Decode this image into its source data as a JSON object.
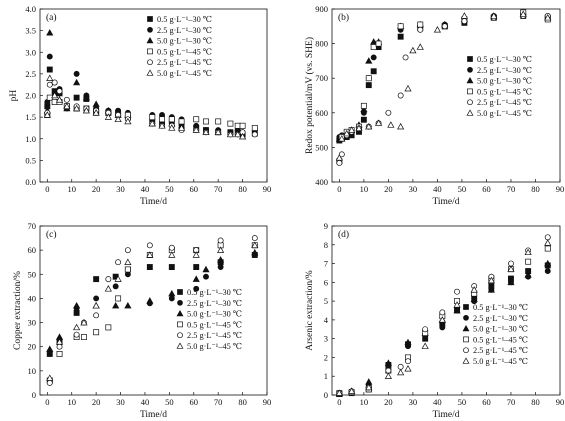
{
  "figure": {
    "series_styles": [
      {
        "marker": "square",
        "filled": true
      },
      {
        "marker": "circle",
        "filled": true
      },
      {
        "marker": "triangle",
        "filled": true
      },
      {
        "marker": "square",
        "filled": false
      },
      {
        "marker": "circle",
        "filled": false
      },
      {
        "marker": "triangle",
        "filled": false
      }
    ],
    "marker_color": "#111111"
  },
  "chart_data": [
    {
      "type": "scatter",
      "panel_label": "(a)",
      "xlabel": "Time/d",
      "ylabel": "pH",
      "xlim": [
        -3,
        90
      ],
      "ylim": [
        0,
        4.0
      ],
      "xticks": [
        0,
        10,
        20,
        30,
        40,
        50,
        60,
        70,
        80,
        90
      ],
      "yticks": [
        0.0,
        0.5,
        1.0,
        1.5,
        2.0,
        2.5,
        3.0,
        3.5,
        4.0
      ],
      "ytick_decimals": 1,
      "legend": {
        "position": "top-right"
      },
      "series": [
        {
          "name": "0.5 g·L⁻¹–30 ℃",
          "x": [
            0,
            1,
            3,
            5,
            8,
            12,
            16,
            20,
            25,
            29,
            33,
            43,
            47,
            51,
            55,
            61,
            65,
            70,
            75,
            78,
            80,
            85
          ],
          "y": [
            1.75,
            2.6,
            2.1,
            2.05,
            1.75,
            1.95,
            1.92,
            1.65,
            1.6,
            1.6,
            1.5,
            1.4,
            1.35,
            1.4,
            1.35,
            1.25,
            1.2,
            1.15,
            1.15,
            1.15,
            1.1,
            1.12
          ]
        },
        {
          "name": "2.5 g·L⁻¹–30 ℃",
          "x": [
            0,
            1,
            3,
            5,
            8,
            12,
            16,
            20,
            25,
            29,
            33,
            43,
            47,
            51,
            55,
            61,
            65,
            70,
            75,
            78,
            80,
            85
          ],
          "y": [
            1.85,
            2.9,
            2.3,
            2.15,
            1.7,
            2.5,
            2.0,
            1.7,
            1.65,
            1.65,
            1.6,
            1.55,
            1.55,
            1.5,
            1.45,
            1.3,
            1.2,
            1.2,
            1.15,
            1.2,
            1.15,
            1.2
          ]
        },
        {
          "name": "5.0 g·L⁻¹–30 ℃",
          "x": [
            0,
            1,
            3,
            5,
            8,
            12,
            16,
            20,
            25,
            29,
            33,
            43,
            47,
            51,
            55
          ],
          "y": [
            1.65,
            3.45,
            2.05,
            1.9,
            1.7,
            2.3,
            1.95,
            1.8,
            1.65,
            1.55,
            1.55,
            1.35,
            1.3,
            1.35,
            1.3
          ]
        },
        {
          "name": "0.5 g·L⁻¹–45 ℃",
          "x": [
            0,
            1,
            3,
            5,
            8,
            12,
            16,
            20,
            25,
            29,
            33,
            43,
            47,
            51,
            55,
            61,
            65,
            70,
            75,
            78,
            80,
            85
          ],
          "y": [
            1.55,
            1.95,
            1.85,
            1.85,
            1.75,
            1.7,
            1.7,
            1.6,
            1.6,
            1.55,
            1.55,
            1.5,
            1.45,
            1.45,
            1.4,
            1.45,
            1.4,
            1.4,
            1.35,
            1.3,
            1.3,
            1.25
          ]
        },
        {
          "name": "2.5 g·L⁻¹–45 ℃",
          "x": [
            0,
            1,
            3,
            5,
            8,
            12,
            16,
            20,
            25,
            29,
            33,
            43,
            47,
            51,
            55,
            61,
            65,
            70,
            75,
            78,
            80,
            85
          ],
          "y": [
            1.6,
            2.25,
            2.3,
            2.1,
            1.9,
            1.75,
            1.7,
            1.65,
            1.6,
            1.55,
            1.45,
            1.35,
            1.3,
            1.3,
            1.2,
            1.2,
            1.15,
            1.15,
            1.1,
            1.1,
            1.15,
            1.1
          ]
        },
        {
          "name": "5.0 g·L⁻¹–45 ℃",
          "x": [
            0,
            1,
            3,
            5,
            8,
            12,
            16,
            20,
            25,
            29,
            33,
            43,
            47,
            51,
            55,
            61,
            65,
            70,
            75,
            78,
            80
          ],
          "y": [
            1.55,
            2.4,
            2.0,
            1.9,
            1.75,
            1.7,
            1.65,
            1.6,
            1.5,
            1.45,
            1.4,
            1.35,
            1.3,
            1.25,
            1.25,
            1.2,
            1.15,
            1.15,
            1.1,
            1.1,
            1.05
          ]
        }
      ]
    },
    {
      "type": "scatter",
      "panel_label": "(b)",
      "xlabel": "Time/d",
      "ylabel": "Redox potential/mV (vs. SHE)",
      "xlim": [
        -3,
        90
      ],
      "ylim": [
        400,
        900
      ],
      "xticks": [
        0,
        10,
        20,
        30,
        40,
        50,
        60,
        70,
        80,
        90
      ],
      "yticks": [
        400,
        500,
        600,
        700,
        800,
        900
      ],
      "ytick_decimals": 0,
      "legend": {
        "position": "right"
      },
      "series": [
        {
          "name": "0.5 g·L⁻¹–30 ℃",
          "x": [
            0,
            1,
            3,
            5,
            8,
            10,
            12,
            14,
            16,
            25,
            33,
            43,
            51,
            63,
            75,
            85
          ],
          "y": [
            520,
            525,
            530,
            535,
            545,
            580,
            680,
            720,
            790,
            820,
            845,
            850,
            860,
            875,
            880,
            875
          ]
        },
        {
          "name": "2.5 g·L⁻¹–30 ℃",
          "x": [
            0,
            1,
            3,
            5,
            8,
            10,
            12,
            14,
            16,
            25,
            33,
            43,
            51,
            63,
            75,
            85
          ],
          "y": [
            530,
            535,
            540,
            545,
            560,
            600,
            700,
            760,
            800,
            840,
            850,
            855,
            865,
            880,
            885,
            880
          ]
        },
        {
          "name": "5.0 g·L⁻¹–30 ℃",
          "x": [
            0,
            1,
            3,
            5,
            8,
            10,
            12,
            14,
            16,
            25,
            33,
            43,
            51
          ],
          "y": [
            525,
            530,
            540,
            550,
            565,
            610,
            750,
            805,
            805,
            850,
            855,
            855,
            870
          ]
        },
        {
          "name": "0.5 g·L⁻¹–45 ℃",
          "x": [
            0,
            1,
            3,
            5,
            8,
            10,
            12,
            14,
            16,
            25,
            33,
            43,
            51,
            63,
            75,
            85
          ],
          "y": [
            460,
            530,
            545,
            550,
            560,
            620,
            700,
            790,
            800,
            850,
            855,
            850,
            870,
            875,
            890,
            870
          ]
        },
        {
          "name": "2.5 g·L⁻¹–45 ℃",
          "x": [
            0,
            1,
            3,
            5,
            8,
            12,
            16,
            20,
            25,
            27,
            33,
            43,
            51,
            63,
            75,
            85
          ],
          "y": [
            455,
            480,
            535,
            545,
            555,
            560,
            570,
            600,
            650,
            760,
            840,
            850,
            865,
            875,
            880,
            880
          ]
        },
        {
          "name": "5.0 g·L⁻¹–45 ℃",
          "x": [
            0,
            1,
            3,
            5,
            8,
            12,
            16,
            21,
            25,
            28,
            30,
            33,
            40,
            51,
            63,
            75,
            85
          ],
          "y": [
            470,
            525,
            540,
            550,
            555,
            560,
            570,
            565,
            560,
            670,
            780,
            790,
            840,
            880,
            880,
            885,
            875
          ]
        }
      ]
    },
    {
      "type": "scatter",
      "panel_label": "(c)",
      "xlabel": "Time/d",
      "ylabel": "Copper extraction/%",
      "xlim": [
        -3,
        90
      ],
      "ylim": [
        0,
        70
      ],
      "xticks": [
        0,
        10,
        20,
        30,
        40,
        50,
        60,
        70,
        80,
        90
      ],
      "yticks": [
        0,
        10,
        20,
        30,
        40,
        50,
        60,
        70
      ],
      "ytick_decimals": 0,
      "legend": {
        "position": "bottom-right"
      },
      "series": [
        {
          "name": "0.5 g·L⁻¹–30 ℃",
          "x": [
            1,
            5,
            12,
            20,
            28,
            33,
            42,
            51,
            61,
            71,
            85
          ],
          "y": [
            17,
            22,
            34,
            48,
            49,
            52,
            53,
            53,
            53,
            55,
            58
          ]
        },
        {
          "name": "2.5 g·L⁻¹–30 ℃",
          "x": [
            1,
            5,
            12,
            20,
            28,
            33,
            42,
            51,
            61,
            65,
            71,
            85
          ],
          "y": [
            18,
            23,
            36,
            40,
            45,
            50,
            38,
            40,
            44,
            49,
            53,
            58
          ]
        },
        {
          "name": "5.0 g·L⁻¹–30 ℃",
          "x": [
            1,
            5,
            12,
            20,
            28,
            33,
            42,
            51,
            61,
            65,
            71,
            85
          ],
          "y": [
            19,
            24,
            37,
            37,
            37,
            37,
            39,
            42,
            48,
            52,
            56,
            59
          ]
        },
        {
          "name": "0.5 g·L⁻¹–45 ℃",
          "x": [
            1,
            5,
            12,
            15,
            20,
            25,
            29,
            33,
            42,
            51,
            61,
            71,
            85
          ],
          "y": [
            6,
            17,
            24,
            24,
            26,
            28,
            40,
            52,
            58,
            60,
            60,
            62,
            62
          ]
        },
        {
          "name": "2.5 g·L⁻¹–45 ℃",
          "x": [
            1,
            5,
            12,
            15,
            20,
            25,
            29,
            33,
            42,
            51,
            61,
            71,
            85
          ],
          "y": [
            5,
            20,
            25,
            30,
            33,
            48,
            55,
            60,
            62,
            61,
            60,
            64,
            65
          ]
        },
        {
          "name": "5.0 g·L⁻¹–45 ℃",
          "x": [
            1,
            5,
            12,
            15,
            20,
            25,
            29,
            33,
            42,
            51,
            61,
            71,
            85
          ],
          "y": [
            7,
            22,
            28,
            30,
            37,
            44,
            48,
            55,
            58,
            58,
            58,
            60,
            62
          ]
        }
      ]
    },
    {
      "type": "scatter",
      "panel_label": "(d)",
      "xlabel": "Time/d",
      "ylabel": "Arsenic extraction/%",
      "xlim": [
        -3,
        90
      ],
      "ylim": [
        0,
        9
      ],
      "xticks": [
        0,
        10,
        20,
        30,
        40,
        50,
        60,
        70,
        80,
        90
      ],
      "yticks": [
        0,
        1,
        2,
        3,
        4,
        5,
        6,
        7,
        8,
        9
      ],
      "ytick_decimals": 0,
      "legend": {
        "position": "bottom-right"
      },
      "series": [
        {
          "name": "0.5 g·L⁻¹–30 ℃",
          "x": [
            0,
            5,
            12,
            20,
            28,
            35,
            42,
            48,
            55,
            62,
            70,
            77,
            85
          ],
          "y": [
            0.05,
            0.1,
            0.3,
            1.6,
            2.7,
            3.0,
            3.8,
            4.5,
            5.2,
            5.8,
            6.2,
            6.6,
            6.9
          ]
        },
        {
          "name": "2.5 g·L⁻¹–30 ℃",
          "x": [
            0,
            5,
            12,
            20,
            28,
            35,
            42,
            48,
            55,
            62,
            70,
            77,
            85
          ],
          "y": [
            0.05,
            0.15,
            0.5,
            1.6,
            2.6,
            3.2,
            3.6,
            4.6,
            5.0,
            5.6,
            6.0,
            6.3,
            6.6
          ]
        },
        {
          "name": "5.0 g·L⁻¹–30 ℃",
          "x": [
            0,
            5,
            12,
            20,
            28,
            35,
            42,
            48,
            55,
            62,
            70,
            77,
            85
          ],
          "y": [
            0.05,
            0.2,
            0.7,
            1.7,
            2.8,
            3.3,
            4.0,
            4.5,
            5.1,
            5.6,
            6.0,
            6.4,
            7.0
          ]
        },
        {
          "name": "0.5 g·L⁻¹–45 ℃",
          "x": [
            0,
            5,
            12,
            20,
            28,
            35,
            42,
            48,
            55,
            62,
            70,
            77,
            85
          ],
          "y": [
            0.1,
            0.15,
            0.3,
            1.3,
            2.0,
            3.3,
            4.2,
            5.0,
            5.4,
            6.2,
            6.7,
            7.1,
            7.8
          ]
        },
        {
          "name": "2.5 g·L⁻¹–45 ℃",
          "x": [
            0,
            5,
            12,
            20,
            25,
            28,
            35,
            42,
            48,
            55,
            62,
            70,
            77,
            85
          ],
          "y": [
            0.1,
            0.2,
            0.4,
            1.3,
            1.5,
            1.8,
            3.5,
            4.4,
            5.5,
            5.8,
            6.3,
            7.0,
            7.7,
            8.4
          ]
        },
        {
          "name": "5.0 g·L⁻¹–45 ℃",
          "x": [
            0,
            5,
            12,
            20,
            25,
            28,
            35,
            42,
            48,
            55,
            62,
            70,
            77,
            85
          ],
          "y": [
            0.1,
            0.2,
            0.4,
            1.0,
            1.2,
            1.4,
            2.6,
            4.0,
            4.8,
            5.6,
            6.1,
            6.7,
            7.6,
            8.1
          ]
        }
      ]
    }
  ]
}
